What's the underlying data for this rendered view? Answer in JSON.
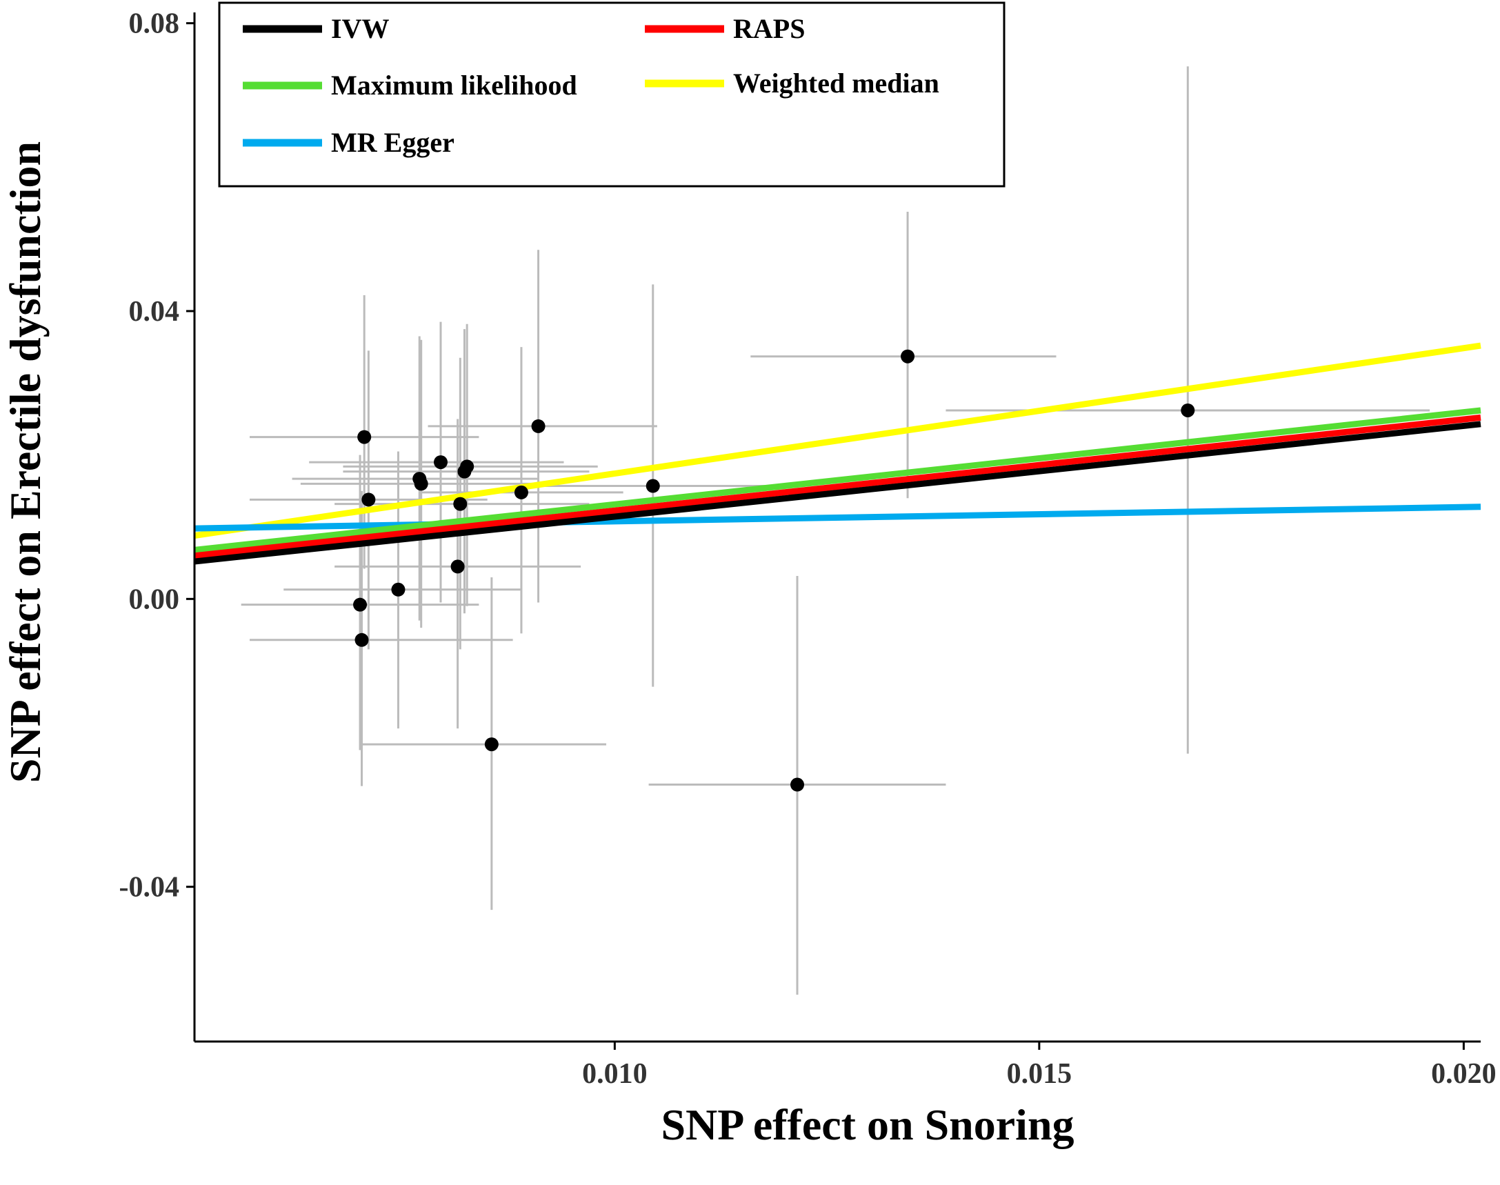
{
  "chart_data": {
    "type": "scatter",
    "title": "",
    "xlabel": "SNP effect on Snoring",
    "ylabel": "SNP effect on Erectile dysfunction",
    "xlim": [
      0.00505,
      0.0202
    ],
    "ylim": [
      -0.0615,
      0.0815
    ],
    "xticks": [
      0.01,
      0.015,
      0.02
    ],
    "xtick_labels": [
      "0.010",
      "0.015",
      "0.020"
    ],
    "yticks": [
      -0.04,
      0.0,
      0.04,
      0.08
    ],
    "ytick_labels": [
      "-0.04",
      "0.00",
      "0.04",
      "0.08"
    ],
    "grid": false,
    "legend_position": "top-left",
    "point_color": "#000000",
    "errorbar_color": "#bbbbbb",
    "points": [
      {
        "x": 0.00705,
        "y": 0.0225,
        "xlo": 0.0057,
        "xhi": 0.0084,
        "ylo": 0.0042,
        "yhi": 0.0422
      },
      {
        "x": 0.0071,
        "y": 0.0138,
        "xlo": 0.0057,
        "xhi": 0.0085,
        "ylo": -0.007,
        "yhi": 0.0345
      },
      {
        "x": 0.007,
        "y": -0.0008,
        "xlo": 0.0056,
        "xhi": 0.0084,
        "ylo": -0.021,
        "yhi": 0.02
      },
      {
        "x": 0.00702,
        "y": -0.0057,
        "xlo": 0.0057,
        "xhi": 0.0088,
        "ylo": -0.026,
        "yhi": 0.015
      },
      {
        "x": 0.00745,
        "y": 0.0013,
        "xlo": 0.0061,
        "xhi": 0.0089,
        "ylo": -0.018,
        "yhi": 0.0205
      },
      {
        "x": 0.0077,
        "y": 0.0167,
        "xlo": 0.0062,
        "xhi": 0.0091,
        "ylo": -0.003,
        "yhi": 0.0365
      },
      {
        "x": 0.00772,
        "y": 0.016,
        "xlo": 0.0063,
        "xhi": 0.0092,
        "ylo": -0.004,
        "yhi": 0.036
      },
      {
        "x": 0.00795,
        "y": 0.019,
        "xlo": 0.0064,
        "xhi": 0.0094,
        "ylo": -0.0005,
        "yhi": 0.0385
      },
      {
        "x": 0.00815,
        "y": 0.0045,
        "xlo": 0.0067,
        "xhi": 0.0096,
        "ylo": -0.018,
        "yhi": 0.025
      },
      {
        "x": 0.00818,
        "y": 0.0132,
        "xlo": 0.0067,
        "xhi": 0.0097,
        "ylo": -0.007,
        "yhi": 0.0335
      },
      {
        "x": 0.00823,
        "y": 0.0177,
        "xlo": 0.0068,
        "xhi": 0.0097,
        "ylo": -0.002,
        "yhi": 0.0375
      },
      {
        "x": 0.00826,
        "y": 0.0184,
        "xlo": 0.0068,
        "xhi": 0.0098,
        "ylo": -0.001,
        "yhi": 0.0382
      },
      {
        "x": 0.00855,
        "y": -0.0202,
        "xlo": 0.007,
        "xhi": 0.0099,
        "ylo": -0.0432,
        "yhi": 0.003
      },
      {
        "x": 0.0089,
        "y": 0.0148,
        "xlo": 0.0077,
        "xhi": 0.0101,
        "ylo": -0.0048,
        "yhi": 0.035
      },
      {
        "x": 0.0091,
        "y": 0.024,
        "xlo": 0.0078,
        "xhi": 0.0105,
        "ylo": -0.0005,
        "yhi": 0.0485
      },
      {
        "x": 0.01045,
        "y": 0.0157,
        "xlo": 0.0091,
        "xhi": 0.0118,
        "ylo": -0.0122,
        "yhi": 0.0437
      },
      {
        "x": 0.01215,
        "y": -0.0258,
        "xlo": 0.0104,
        "xhi": 0.0139,
        "ylo": -0.055,
        "yhi": 0.0032
      },
      {
        "x": 0.01345,
        "y": 0.0337,
        "xlo": 0.0116,
        "xhi": 0.0152,
        "ylo": 0.014,
        "yhi": 0.0538
      },
      {
        "x": 0.01675,
        "y": 0.0262,
        "xlo": 0.0139,
        "xhi": 0.0196,
        "ylo": -0.0215,
        "yhi": 0.074
      }
    ],
    "series": [
      {
        "name": "IVW",
        "type": "line",
        "color": "#000000",
        "x": [
          0.00505,
          0.0202
        ],
        "y": [
          0.0052,
          0.0243
        ]
      },
      {
        "name": "RAPS",
        "type": "line",
        "color": "#ff0000",
        "x": [
          0.00505,
          0.0202
        ],
        "y": [
          0.006,
          0.0252
        ]
      },
      {
        "name": "Maximum likelihood",
        "type": "line",
        "color": "#55dd33",
        "x": [
          0.00505,
          0.0202
        ],
        "y": [
          0.0068,
          0.0262
        ]
      },
      {
        "name": "Weighted median",
        "type": "line",
        "color": "#ffff00",
        "x": [
          0.00505,
          0.0202
        ],
        "y": [
          0.0088,
          0.0352
        ]
      },
      {
        "name": "MR Egger",
        "type": "line",
        "color": "#00aaee",
        "x": [
          0.00505,
          0.0202
        ],
        "y": [
          0.0098,
          0.0128
        ]
      }
    ]
  }
}
